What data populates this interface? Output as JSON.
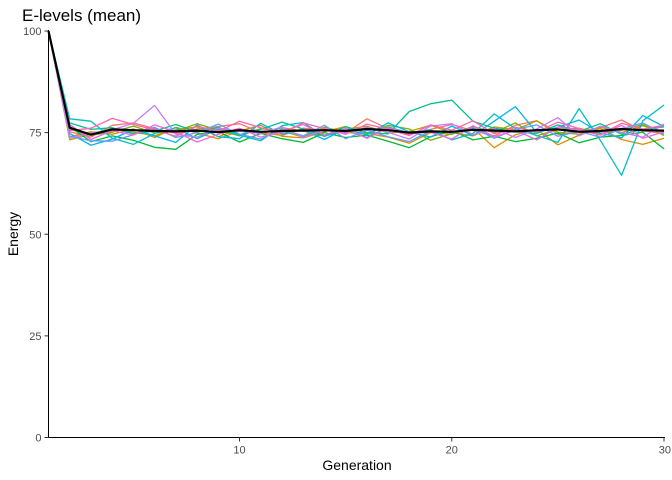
{
  "chart_data": {
    "type": "line",
    "title": "E-levels (mean)",
    "xlabel": "Generation",
    "ylabel": "Energy",
    "xlim": [
      1,
      30
    ],
    "ylim": [
      0,
      100
    ],
    "xticks": [
      10,
      20,
      30
    ],
    "yticks": [
      0,
      25,
      50,
      75,
      100
    ],
    "grid": false,
    "legend": "none",
    "series_colors": [
      "#F8766D",
      "#DE8C00",
      "#B79F00",
      "#7CAE00",
      "#00BA38",
      "#00C08B",
      "#00BFC4",
      "#00B4F0",
      "#619CFF",
      "#C77CFF",
      "#F564E3",
      "#FF64B0"
    ],
    "x": [
      1,
      2,
      3,
      4,
      5,
      6,
      7,
      8,
      9,
      10,
      11,
      12,
      13,
      14,
      15,
      16,
      17,
      18,
      19,
      20,
      21,
      22,
      23,
      24,
      25,
      26,
      27,
      28,
      29,
      30
    ],
    "mean_series": {
      "color": "#000000",
      "values": [
        100,
        76.2,
        74.5,
        75.8,
        75.6,
        75.4,
        75.3,
        75.5,
        75.1,
        75.6,
        75.2,
        75.4,
        75.5,
        75.6,
        75.4,
        75.9,
        75.6,
        75.0,
        75.3,
        75.2,
        75.7,
        75.5,
        75.3,
        75.6,
        75.8,
        75.2,
        75.4,
        75.9,
        75.6,
        75.5
      ]
    },
    "series": [
      {
        "values": [
          100,
          75.2,
          73.9,
          76.8,
          77.4,
          76.0,
          74.8,
          75.9,
          76.5,
          77.2,
          75.0,
          74.3,
          76.1,
          75.6,
          74.9,
          78.4,
          76.0,
          74.5,
          75.8,
          77.0,
          75.5,
          74.2,
          76.8,
          77.9,
          74.6,
          75.3,
          76.2,
          78.1,
          75.4,
          74.8
        ]
      },
      {
        "values": [
          100,
          74.0,
          75.2,
          74.6,
          75.9,
          73.8,
          76.3,
          74.9,
          73.5,
          75.4,
          76.8,
          74.1,
          73.7,
          75.2,
          76.5,
          74.8,
          73.9,
          72.4,
          75.0,
          74.6,
          76.1,
          71.3,
          74.5,
          75.8,
          72.0,
          74.4,
          76.0,
          73.3,
          72.1,
          73.6
        ]
      },
      {
        "values": [
          100,
          73.2,
          74.6,
          76.0,
          75.1,
          74.3,
          75.7,
          76.4,
          74.0,
          75.9,
          74.7,
          76.2,
          75.4,
          74.1,
          75.8,
          76.6,
          74.9,
          75.3,
          76.8,
          75.0,
          74.2,
          76.4,
          75.7,
          77.9,
          75.1,
          74.6,
          76.3,
          75.0,
          76.7,
          75.2
        ]
      },
      {
        "values": [
          100,
          75.8,
          74.4,
          75.1,
          76.6,
          74.9,
          75.3,
          77.2,
          75.6,
          74.2,
          76.0,
          75.4,
          73.9,
          76.3,
          75.1,
          74.6,
          76.8,
          75.9,
          73.1,
          74.7,
          76.5,
          75.0,
          77.4,
          74.2,
          75.8,
          76.1,
          74.8,
          75.6,
          77.0,
          74.3
        ]
      },
      {
        "values": [
          100,
          76.5,
          72.8,
          74.2,
          73.1,
          71.4,
          70.9,
          74.6,
          75.2,
          72.7,
          74.8,
          73.5,
          72.6,
          75.0,
          73.8,
          74.4,
          72.9,
          71.3,
          74.0,
          75.5,
          73.2,
          74.1,
          72.8,
          73.6,
          74.9,
          72.5,
          73.9,
          74.3,
          75.1,
          71.0
        ]
      },
      {
        "values": [
          100,
          77.4,
          75.8,
          76.2,
          74.7,
          75.4,
          77.0,
          75.1,
          76.3,
          74.5,
          75.8,
          77.6,
          75.9,
          74.3,
          76.4,
          75.0,
          74.7,
          80.2,
          82.1,
          83.0,
          77.8,
          76.1,
          75.2,
          74.8,
          76.9,
          75.3,
          77.2,
          74.6,
          75.8,
          76.4
        ]
      },
      {
        "values": [
          100,
          78.4,
          77.8,
          73.6,
          72.1,
          74.8,
          76.2,
          73.5,
          75.9,
          74.4,
          73.0,
          76.7,
          77.5,
          74.1,
          75.6,
          73.8,
          76.4,
          74.9,
          75.7,
          73.2,
          74.8,
          79.6,
          76.0,
          74.3,
          72.6,
          80.9,
          73.1,
          64.5,
          77.9,
          81.8
        ]
      },
      {
        "values": [
          100,
          74.8,
          71.9,
          73.4,
          75.8,
          74.2,
          72.6,
          76.9,
          74.0,
          73.5,
          77.3,
          74.6,
          75.8,
          73.3,
          76.0,
          74.5,
          77.4,
          75.2,
          73.9,
          76.6,
          74.3,
          77.8,
          81.4,
          75.0,
          76.3,
          78.1,
          74.9,
          73.7,
          79.2,
          76.5
        ]
      },
      {
        "values": [
          100,
          74.1,
          73.0,
          72.9,
          74.5,
          76.3,
          73.8,
          75.0,
          77.1,
          74.6,
          73.4,
          75.9,
          74.2,
          76.8,
          73.5,
          75.6,
          74.0,
          72.8,
          75.4,
          74.9,
          76.2,
          73.6,
          75.8,
          76.9,
          74.1,
          75.3,
          73.9,
          76.0,
          77.4,
          74.7
        ]
      },
      {
        "values": [
          100,
          73.6,
          74.9,
          75.7,
          77.3,
          81.7,
          74.6,
          73.9,
          76.1,
          75.3,
          74.8,
          76.4,
          73.7,
          75.8,
          74.9,
          76.3,
          75.1,
          73.4,
          76.6,
          77.2,
          74.5,
          76.0,
          73.8,
          75.9,
          78.7,
          74.2,
          76.6,
          75.0,
          73.9,
          77.1
        ]
      },
      {
        "values": [
          100,
          77.0,
          73.3,
          75.5,
          74.4,
          76.9,
          75.2,
          72.7,
          74.6,
          76.1,
          73.9,
          75.3,
          77.0,
          74.4,
          75.9,
          73.6,
          76.2,
          74.8,
          75.1,
          73.4,
          76.7,
          74.0,
          75.6,
          73.2,
          76.4,
          75.7,
          74.4,
          76.8,
          73.6,
          75.2
        ]
      },
      {
        "values": [
          100,
          75.5,
          76.1,
          78.5,
          77.0,
          75.7,
          74.1,
          76.6,
          75.3,
          77.8,
          76.2,
          74.9,
          77.4,
          76.0,
          74.6,
          77.1,
          75.8,
          74.3,
          76.9,
          75.6,
          77.9,
          74.7,
          76.3,
          75.1,
          77.6,
          76.0,
          74.5,
          77.3,
          75.9,
          76.8
        ]
      }
    ]
  }
}
